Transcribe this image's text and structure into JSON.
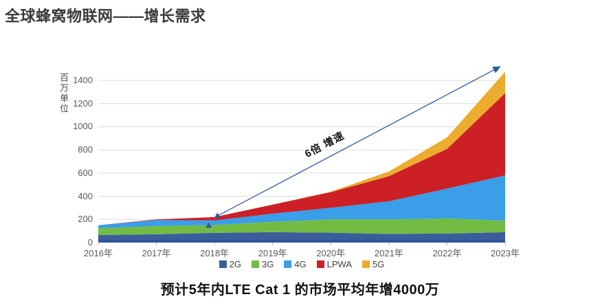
{
  "page": {
    "title": "全球蜂窝物联网——增长需求",
    "caption": "预计5年内LTE Cat 1 的市场平均年增4000万"
  },
  "colors": {
    "axis_line": "#2F5597",
    "grid": "#DCDCDC",
    "tick_text": "#595959",
    "arrow": "#2E5B9F",
    "marker": "#2E5B9F"
  },
  "chart_data": {
    "type": "area",
    "stacked": true,
    "title": "全球蜂窝物联网——增长需求",
    "y_axis_label": "百万单位",
    "xlabel": "",
    "ylabel": "百万单位",
    "x_labels": [
      "2016年",
      "2017年",
      "2018年",
      "2019年",
      "2020年",
      "2021年",
      "2022年",
      "2023年"
    ],
    "x": [
      2016,
      2017,
      2018,
      2019,
      2020,
      2021,
      2022,
      2023
    ],
    "ylim": [
      0,
      1560
    ],
    "y_ticks": [
      0,
      200,
      400,
      600,
      800,
      1000,
      1200,
      1400
    ],
    "grid": true,
    "legend_position": "bottom",
    "series": [
      {
        "name": "2G",
        "color": "#3C5D9C",
        "values": [
          65,
          72,
          84,
          90,
          85,
          75,
          78,
          90
        ]
      },
      {
        "name": "3G",
        "color": "#72BC44",
        "values": [
          58,
          70,
          68,
          90,
          115,
          125,
          130,
          100
        ]
      },
      {
        "name": "4G",
        "color": "#3A9EE8",
        "values": [
          27,
          53,
          39,
          70,
          100,
          157,
          258,
          390
        ]
      },
      {
        "name": "LPWA",
        "color": "#CC2026",
        "values": [
          0,
          5,
          29,
          78,
          135,
          216,
          342,
          710
        ]
      },
      {
        "name": "5G",
        "color": "#EBAC2F",
        "values": [
          0,
          0,
          0,
          0,
          5,
          40,
          100,
          185
        ]
      }
    ],
    "stacked_totals": [
      150,
      200,
      220,
      328,
      440,
      613,
      908,
      1475
    ],
    "annotation": {
      "text": "6倍 增速",
      "arrow_from": {
        "year": 2018.05,
        "value": 230
      },
      "arrow_to": {
        "year": 2022.9,
        "value": 1515
      }
    },
    "markers": [
      {
        "year": 2017.9,
        "value": 145
      },
      {
        "year": 2018.05,
        "value": 230
      }
    ]
  }
}
